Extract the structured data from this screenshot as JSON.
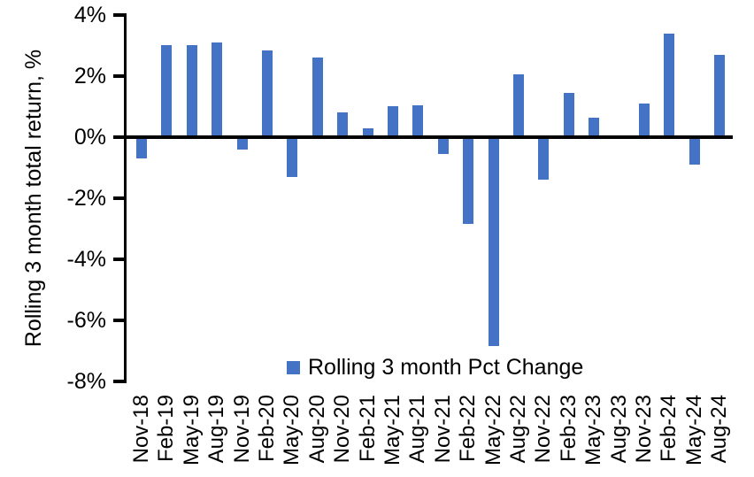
{
  "chart_data": {
    "type": "bar",
    "title": "",
    "ylabel": "Rolling 3 month total return, %",
    "xlabel": "",
    "series_name": "Rolling 3 month Pct Change",
    "categories": [
      "Nov-18",
      "Feb-19",
      "May-19",
      "Aug-19",
      "Nov-19",
      "Feb-20",
      "May-20",
      "Aug-20",
      "Nov-20",
      "Feb-21",
      "May-21",
      "Aug-21",
      "Nov-21",
      "Feb-22",
      "May-22",
      "Aug-22",
      "Nov-22",
      "Feb-23",
      "May-23",
      "Aug-23",
      "Nov-23",
      "Feb-24",
      "May-24",
      "Aug-24"
    ],
    "values": [
      -0.7,
      3.0,
      3.0,
      3.1,
      -0.4,
      2.85,
      -1.3,
      2.6,
      0.8,
      0.3,
      1.0,
      1.05,
      -0.55,
      -2.85,
      -6.85,
      2.05,
      -1.4,
      1.45,
      0.65,
      0.0,
      1.1,
      3.4,
      -0.9,
      2.7
    ],
    "ylim": [
      -8,
      4
    ],
    "ytick_step": 2,
    "ytick_labels": [
      "4%",
      "2%",
      "0%",
      "-2%",
      "-4%",
      "-6%",
      "-8%"
    ],
    "grid": false,
    "legend_position": "bottom-center",
    "colors": {
      "bar": "#4472C4",
      "axis": "#000000",
      "text": "#000000",
      "background": "#FFFFFF"
    }
  }
}
